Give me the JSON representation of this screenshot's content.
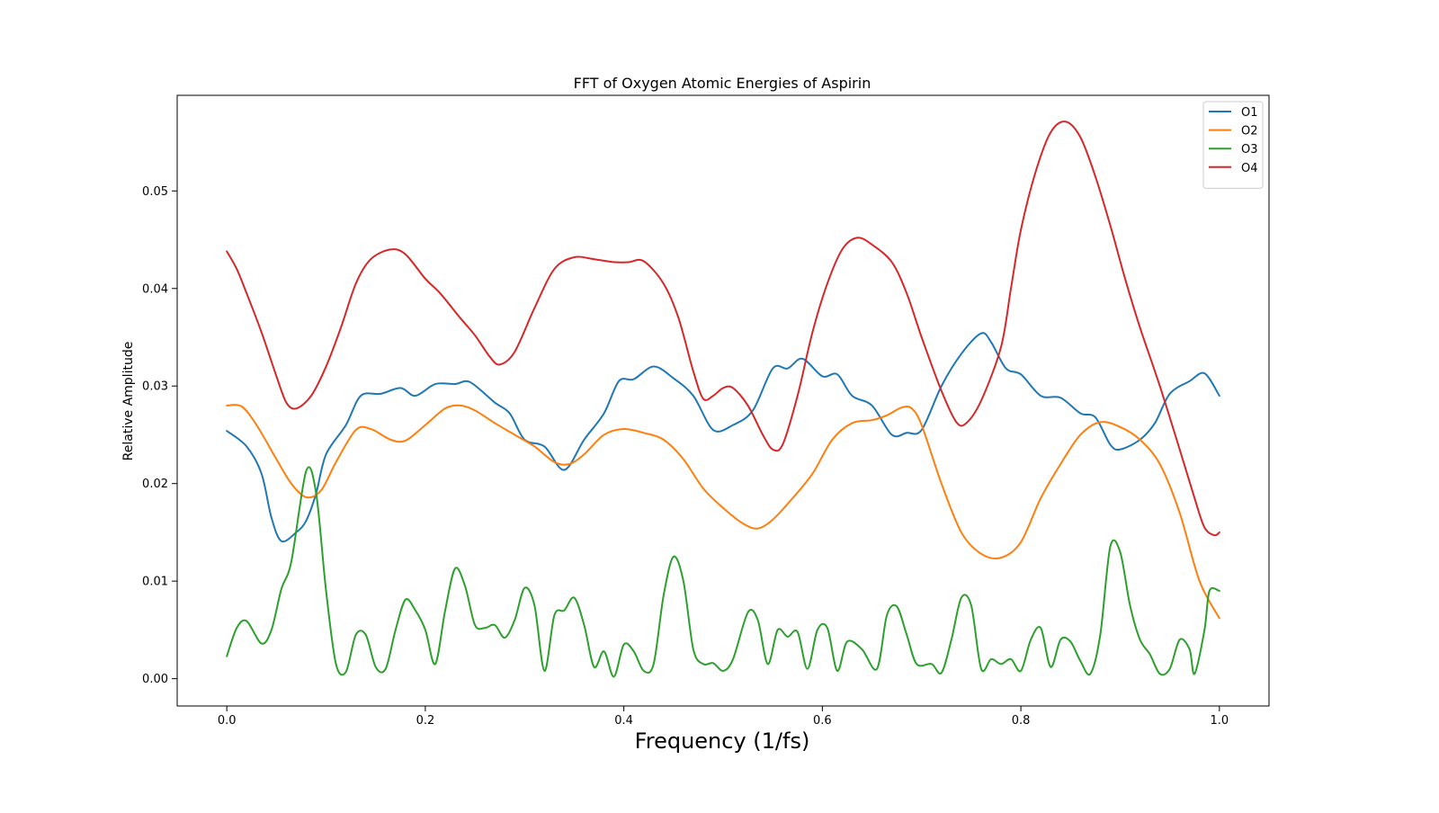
{
  "chart_data": {
    "type": "line",
    "title": "FFT of Oxygen Atomic Energies of Aspirin",
    "xlabel": "Frequency (1/fs)",
    "ylabel": "Relative Amplitude",
    "xlim": [
      -0.05,
      1.05
    ],
    "ylim": [
      -0.0028,
      0.0598
    ],
    "xticks": [
      0.0,
      0.2,
      0.4,
      0.6,
      0.8,
      1.0
    ],
    "xtick_labels": [
      "0.0",
      "0.2",
      "0.4",
      "0.6",
      "0.8",
      "1.0"
    ],
    "yticks": [
      0.0,
      0.01,
      0.02,
      0.03,
      0.04,
      0.05
    ],
    "ytick_labels": [
      "0.00",
      "0.01",
      "0.02",
      "0.03",
      "0.04",
      "0.05"
    ],
    "grid": false,
    "legend_position": "top-right",
    "series": [
      {
        "name": "O1",
        "color": "#1f77b4",
        "points": [
          [
            0.0,
            0.0254
          ],
          [
            0.02,
            0.0238
          ],
          [
            0.035,
            0.021
          ],
          [
            0.045,
            0.0165
          ],
          [
            0.055,
            0.0141
          ],
          [
            0.07,
            0.015
          ],
          [
            0.08,
            0.0162
          ],
          [
            0.09,
            0.019
          ],
          [
            0.1,
            0.023
          ],
          [
            0.12,
            0.026
          ],
          [
            0.135,
            0.029
          ],
          [
            0.155,
            0.0292
          ],
          [
            0.175,
            0.0298
          ],
          [
            0.19,
            0.029
          ],
          [
            0.21,
            0.0302
          ],
          [
            0.23,
            0.0302
          ],
          [
            0.245,
            0.0304
          ],
          [
            0.27,
            0.0283
          ],
          [
            0.285,
            0.0272
          ],
          [
            0.3,
            0.0245
          ],
          [
            0.32,
            0.0238
          ],
          [
            0.34,
            0.0214
          ],
          [
            0.36,
            0.0245
          ],
          [
            0.38,
            0.0272
          ],
          [
            0.395,
            0.0305
          ],
          [
            0.41,
            0.0307
          ],
          [
            0.43,
            0.032
          ],
          [
            0.45,
            0.0308
          ],
          [
            0.47,
            0.029
          ],
          [
            0.49,
            0.0255
          ],
          [
            0.51,
            0.026
          ],
          [
            0.53,
            0.0275
          ],
          [
            0.55,
            0.0318
          ],
          [
            0.565,
            0.0318
          ],
          [
            0.58,
            0.0328
          ],
          [
            0.6,
            0.031
          ],
          [
            0.615,
            0.0312
          ],
          [
            0.63,
            0.029
          ],
          [
            0.65,
            0.028
          ],
          [
            0.67,
            0.025
          ],
          [
            0.685,
            0.0252
          ],
          [
            0.7,
            0.0255
          ],
          [
            0.72,
            0.03
          ],
          [
            0.74,
            0.0333
          ],
          [
            0.76,
            0.0354
          ],
          [
            0.77,
            0.0345
          ],
          [
            0.785,
            0.0318
          ],
          [
            0.8,
            0.0312
          ],
          [
            0.82,
            0.029
          ],
          [
            0.84,
            0.0288
          ],
          [
            0.86,
            0.0272
          ],
          [
            0.875,
            0.0268
          ],
          [
            0.89,
            0.024
          ],
          [
            0.9,
            0.0235
          ],
          [
            0.92,
            0.0245
          ],
          [
            0.935,
            0.0262
          ],
          [
            0.95,
            0.0292
          ],
          [
            0.97,
            0.0305
          ],
          [
            0.985,
            0.0313
          ],
          [
            1.0,
            0.029
          ]
        ]
      },
      {
        "name": "O2",
        "color": "#ff7f0e",
        "points": [
          [
            0.0,
            0.028
          ],
          [
            0.015,
            0.0279
          ],
          [
            0.03,
            0.026
          ],
          [
            0.05,
            0.0225
          ],
          [
            0.065,
            0.02
          ],
          [
            0.08,
            0.0186
          ],
          [
            0.095,
            0.0193
          ],
          [
            0.11,
            0.0222
          ],
          [
            0.13,
            0.0255
          ],
          [
            0.145,
            0.0256
          ],
          [
            0.165,
            0.0245
          ],
          [
            0.18,
            0.0244
          ],
          [
            0.2,
            0.026
          ],
          [
            0.22,
            0.0277
          ],
          [
            0.235,
            0.028
          ],
          [
            0.25,
            0.0275
          ],
          [
            0.27,
            0.0262
          ],
          [
            0.29,
            0.025
          ],
          [
            0.31,
            0.0238
          ],
          [
            0.33,
            0.0222
          ],
          [
            0.345,
            0.022
          ],
          [
            0.36,
            0.023
          ],
          [
            0.38,
            0.025
          ],
          [
            0.4,
            0.0256
          ],
          [
            0.42,
            0.0252
          ],
          [
            0.44,
            0.0245
          ],
          [
            0.46,
            0.0225
          ],
          [
            0.48,
            0.0195
          ],
          [
            0.5,
            0.0175
          ],
          [
            0.52,
            0.0159
          ],
          [
            0.535,
            0.0154
          ],
          [
            0.55,
            0.0163
          ],
          [
            0.57,
            0.0185
          ],
          [
            0.59,
            0.021
          ],
          [
            0.61,
            0.0245
          ],
          [
            0.63,
            0.0262
          ],
          [
            0.65,
            0.0265
          ],
          [
            0.665,
            0.027
          ],
          [
            0.68,
            0.0278
          ],
          [
            0.69,
            0.0277
          ],
          [
            0.7,
            0.026
          ],
          [
            0.72,
            0.02
          ],
          [
            0.74,
            0.015
          ],
          [
            0.76,
            0.0128
          ],
          [
            0.78,
            0.0124
          ],
          [
            0.8,
            0.014
          ],
          [
            0.82,
            0.0185
          ],
          [
            0.84,
            0.022
          ],
          [
            0.86,
            0.025
          ],
          [
            0.88,
            0.0263
          ],
          [
            0.9,
            0.0258
          ],
          [
            0.92,
            0.0245
          ],
          [
            0.94,
            0.022
          ],
          [
            0.96,
            0.017
          ],
          [
            0.98,
            0.01
          ],
          [
            1.0,
            0.0062
          ]
        ]
      },
      {
        "name": "O3",
        "color": "#2ca02c",
        "points": [
          [
            0.0,
            0.0023
          ],
          [
            0.01,
            0.0052
          ],
          [
            0.02,
            0.0059
          ],
          [
            0.035,
            0.0036
          ],
          [
            0.045,
            0.005
          ],
          [
            0.055,
            0.0092
          ],
          [
            0.065,
            0.012
          ],
          [
            0.08,
            0.0213
          ],
          [
            0.09,
            0.019
          ],
          [
            0.1,
            0.009
          ],
          [
            0.11,
            0.0015
          ],
          [
            0.12,
            0.0007
          ],
          [
            0.13,
            0.0045
          ],
          [
            0.14,
            0.0045
          ],
          [
            0.15,
            0.0012
          ],
          [
            0.16,
            0.001
          ],
          [
            0.17,
            0.005
          ],
          [
            0.18,
            0.0081
          ],
          [
            0.19,
            0.007
          ],
          [
            0.2,
            0.005
          ],
          [
            0.21,
            0.0015
          ],
          [
            0.22,
            0.007
          ],
          [
            0.23,
            0.0113
          ],
          [
            0.24,
            0.0095
          ],
          [
            0.25,
            0.0055
          ],
          [
            0.26,
            0.0052
          ],
          [
            0.27,
            0.0055
          ],
          [
            0.28,
            0.0042
          ],
          [
            0.29,
            0.006
          ],
          [
            0.3,
            0.0093
          ],
          [
            0.31,
            0.0075
          ],
          [
            0.32,
            0.0008
          ],
          [
            0.33,
            0.0065
          ],
          [
            0.34,
            0.007
          ],
          [
            0.35,
            0.0083
          ],
          [
            0.36,
            0.0055
          ],
          [
            0.37,
            0.0012
          ],
          [
            0.38,
            0.0028
          ],
          [
            0.39,
            0.0002
          ],
          [
            0.4,
            0.0035
          ],
          [
            0.41,
            0.0028
          ],
          [
            0.42,
            0.0008
          ],
          [
            0.43,
            0.0015
          ],
          [
            0.44,
            0.0085
          ],
          [
            0.45,
            0.0125
          ],
          [
            0.46,
            0.01
          ],
          [
            0.47,
            0.003
          ],
          [
            0.48,
            0.0015
          ],
          [
            0.49,
            0.0016
          ],
          [
            0.5,
            0.0008
          ],
          [
            0.51,
            0.002
          ],
          [
            0.525,
            0.0068
          ],
          [
            0.535,
            0.006
          ],
          [
            0.545,
            0.0015
          ],
          [
            0.555,
            0.005
          ],
          [
            0.565,
            0.0043
          ],
          [
            0.575,
            0.0048
          ],
          [
            0.585,
            0.001
          ],
          [
            0.595,
            0.005
          ],
          [
            0.605,
            0.0052
          ],
          [
            0.615,
            0.0008
          ],
          [
            0.625,
            0.0038
          ],
          [
            0.64,
            0.003
          ],
          [
            0.655,
            0.001
          ],
          [
            0.665,
            0.0065
          ],
          [
            0.675,
            0.0074
          ],
          [
            0.685,
            0.0045
          ],
          [
            0.695,
            0.0015
          ],
          [
            0.71,
            0.0015
          ],
          [
            0.72,
            0.0006
          ],
          [
            0.73,
            0.004
          ],
          [
            0.74,
            0.0083
          ],
          [
            0.75,
            0.0075
          ],
          [
            0.76,
            0.001
          ],
          [
            0.77,
            0.002
          ],
          [
            0.78,
            0.0015
          ],
          [
            0.79,
            0.002
          ],
          [
            0.8,
            0.0008
          ],
          [
            0.81,
            0.004
          ],
          [
            0.82,
            0.0052
          ],
          [
            0.83,
            0.0012
          ],
          [
            0.84,
            0.004
          ],
          [
            0.85,
            0.0038
          ],
          [
            0.86,
            0.0018
          ],
          [
            0.87,
            0.0005
          ],
          [
            0.88,
            0.0045
          ],
          [
            0.89,
            0.0135
          ],
          [
            0.9,
            0.013
          ],
          [
            0.91,
            0.0075
          ],
          [
            0.92,
            0.004
          ],
          [
            0.93,
            0.0025
          ],
          [
            0.94,
            0.0005
          ],
          [
            0.95,
            0.001
          ],
          [
            0.96,
            0.004
          ],
          [
            0.97,
            0.003
          ],
          [
            0.975,
            0.0005
          ],
          [
            0.985,
            0.005
          ],
          [
            0.99,
            0.009
          ],
          [
            1.0,
            0.009
          ]
        ]
      },
      {
        "name": "O4",
        "color": "#d62728",
        "points": [
          [
            0.0,
            0.0438
          ],
          [
            0.01,
            0.042
          ],
          [
            0.02,
            0.0395
          ],
          [
            0.035,
            0.0355
          ],
          [
            0.05,
            0.031
          ],
          [
            0.06,
            0.0283
          ],
          [
            0.07,
            0.0277
          ],
          [
            0.085,
            0.029
          ],
          [
            0.1,
            0.032
          ],
          [
            0.115,
            0.036
          ],
          [
            0.13,
            0.0405
          ],
          [
            0.145,
            0.043
          ],
          [
            0.165,
            0.044
          ],
          [
            0.18,
            0.0435
          ],
          [
            0.2,
            0.041
          ],
          [
            0.215,
            0.0395
          ],
          [
            0.235,
            0.037
          ],
          [
            0.25,
            0.0352
          ],
          [
            0.265,
            0.033
          ],
          [
            0.275,
            0.0322
          ],
          [
            0.29,
            0.0335
          ],
          [
            0.31,
            0.038
          ],
          [
            0.33,
            0.042
          ],
          [
            0.35,
            0.0432
          ],
          [
            0.37,
            0.043
          ],
          [
            0.39,
            0.0427
          ],
          [
            0.405,
            0.0427
          ],
          [
            0.42,
            0.0428
          ],
          [
            0.44,
            0.0405
          ],
          [
            0.455,
            0.037
          ],
          [
            0.47,
            0.0315
          ],
          [
            0.48,
            0.0287
          ],
          [
            0.49,
            0.029
          ],
          [
            0.5,
            0.0298
          ],
          [
            0.51,
            0.0298
          ],
          [
            0.525,
            0.028
          ],
          [
            0.54,
            0.025
          ],
          [
            0.55,
            0.0235
          ],
          [
            0.56,
            0.024
          ],
          [
            0.575,
            0.029
          ],
          [
            0.59,
            0.0355
          ],
          [
            0.605,
            0.0405
          ],
          [
            0.62,
            0.044
          ],
          [
            0.635,
            0.0452
          ],
          [
            0.65,
            0.0445
          ],
          [
            0.67,
            0.0427
          ],
          [
            0.685,
            0.0395
          ],
          [
            0.7,
            0.035
          ],
          [
            0.72,
            0.0295
          ],
          [
            0.735,
            0.0263
          ],
          [
            0.745,
            0.0262
          ],
          [
            0.76,
            0.0285
          ],
          [
            0.78,
            0.034
          ],
          [
            0.79,
            0.04
          ],
          [
            0.8,
            0.046
          ],
          [
            0.815,
            0.052
          ],
          [
            0.83,
            0.056
          ],
          [
            0.845,
            0.0571
          ],
          [
            0.86,
            0.0555
          ],
          [
            0.875,
            0.0515
          ],
          [
            0.89,
            0.0465
          ],
          [
            0.905,
            0.041
          ],
          [
            0.92,
            0.036
          ],
          [
            0.94,
            0.03
          ],
          [
            0.96,
            0.0235
          ],
          [
            0.975,
            0.0185
          ],
          [
            0.985,
            0.0155
          ],
          [
            0.995,
            0.0147
          ],
          [
            1.0,
            0.015
          ]
        ]
      }
    ]
  }
}
